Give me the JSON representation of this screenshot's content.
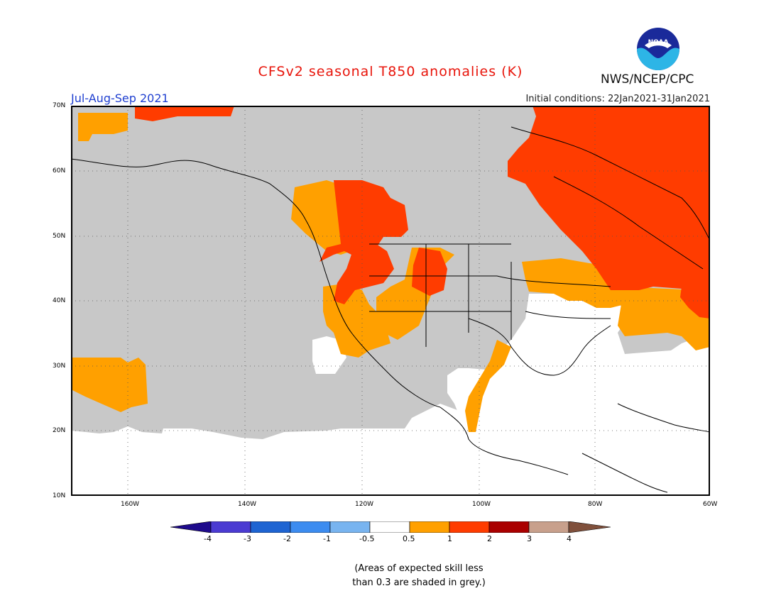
{
  "title": "CFSv2 seasonal T850 anomalies (K)",
  "season": "Jul-Aug-Sep 2021",
  "agency": "NWS/NCEP/CPC",
  "logo_text": "NOAA",
  "initial_conditions": "Initial conditions: 22Jan2021-31Jan2021",
  "lat_labels": [
    "70N",
    "60N",
    "50N",
    "40N",
    "30N",
    "20N",
    "10N"
  ],
  "lon_labels": [
    "160W",
    "140W",
    "120W",
    "100W",
    "80W",
    "60W"
  ],
  "colorbar": {
    "labels": [
      "-4",
      "-3",
      "-2",
      "-1",
      "-0.5",
      "0.5",
      "1",
      "2",
      "3",
      "4"
    ],
    "colors": [
      "#1e0a8c",
      "#4b3bd2",
      "#1e64d2",
      "#3c8cf0",
      "#78b4f0",
      "#ffffff",
      "#ffa000",
      "#ff3c00",
      "#aa0000",
      "#c8a08c",
      "#80503c"
    ]
  },
  "colors": {
    "grey_low_skill": "#c8c8c8",
    "anomaly_0_5_to_1": "#ffa000",
    "anomaly_1_to_2": "#ff3c00"
  },
  "note_line1": "(Areas of expected skill less",
  "note_line2": "than 0.3 are shaded in grey.)"
}
